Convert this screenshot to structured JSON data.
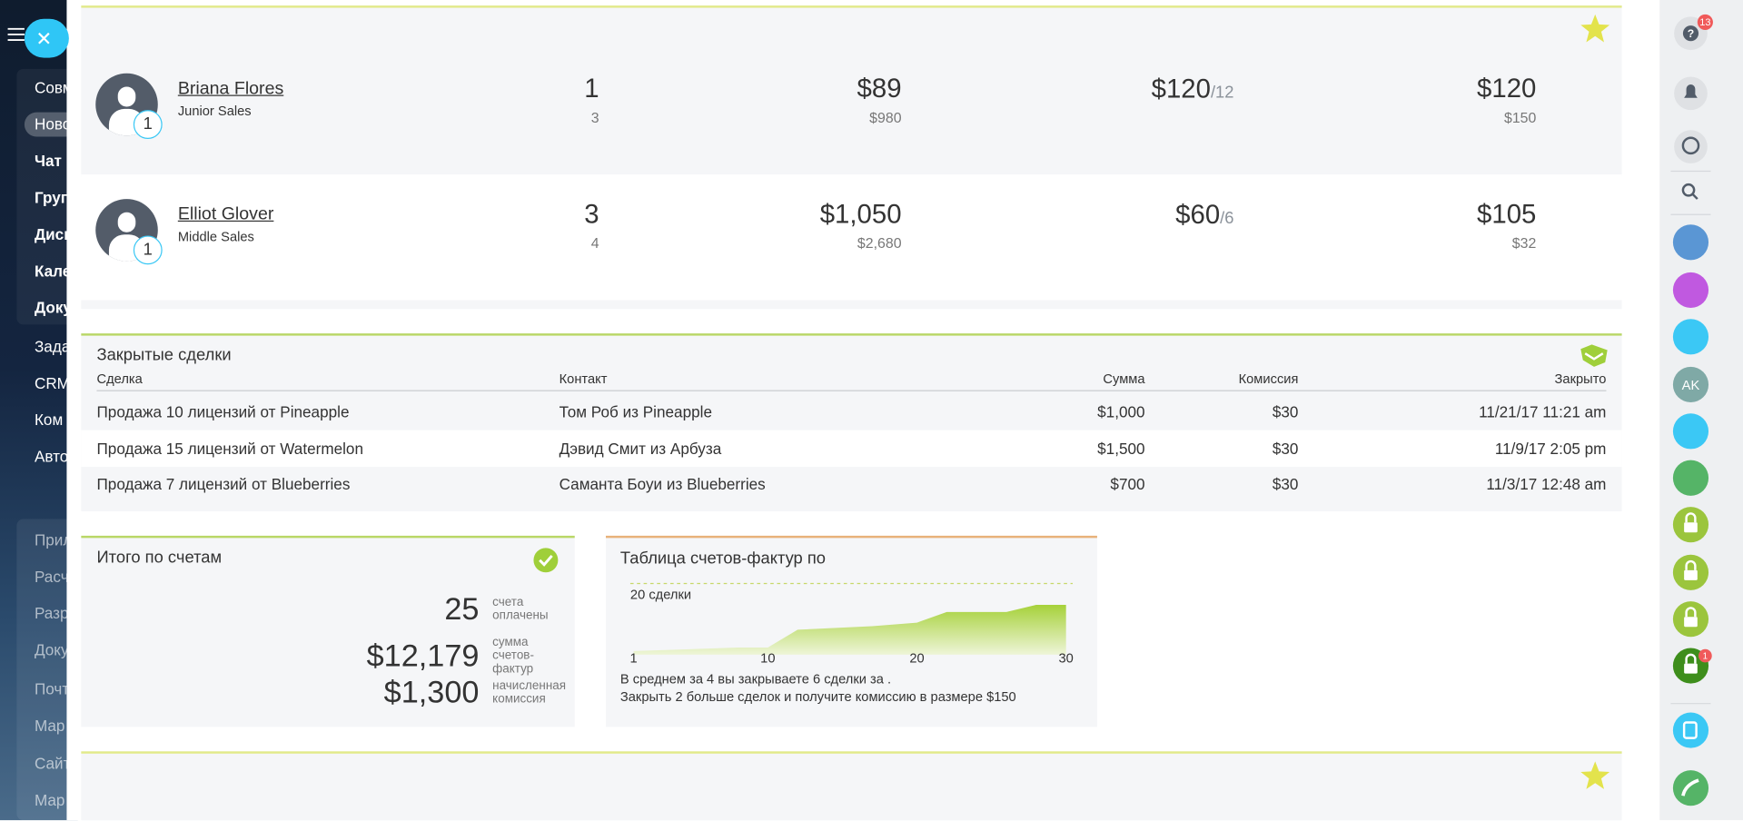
{
  "sidebar": {
    "menu": [
      "Совм",
      "Ново",
      "Чат и",
      "Груп",
      "Диск",
      "Кале",
      "Доку",
      "Зада",
      "CRM",
      "Ком",
      "Авто",
      "Прил",
      "Расч",
      "Разр",
      "Доку",
      "Почт",
      "Мар",
      "Сайт",
      "Мар"
    ]
  },
  "employees": [
    {
      "name": "Briana Flores",
      "role": "Junior Sales",
      "badge": "1",
      "stats": [
        {
          "main": "1",
          "sub": "3"
        },
        {
          "main": "$89",
          "sub": "$980"
        },
        {
          "main": "$120",
          "suffix": "/12"
        },
        {
          "main": "$120",
          "sub": "$150"
        }
      ]
    },
    {
      "name": "Elliot Glover",
      "role": "Middle Sales",
      "badge": "1",
      "stats": [
        {
          "main": "3",
          "sub": "4"
        },
        {
          "main": "$1,050",
          "sub": "$2,680"
        },
        {
          "main": "$60",
          "suffix": "/6"
        },
        {
          "main": "$105",
          "sub": "$32"
        }
      ]
    }
  ],
  "closed_deals": {
    "title": "Закрытые сделки",
    "columns": [
      "Сделка",
      "Контакт",
      "Сумма",
      "Комиссия",
      "Закрыто"
    ],
    "rows": [
      [
        "Продажа 10 лицензий от Pineapple",
        "Том Роб из Pineapple",
        "$1,000",
        "$30",
        "11/21/17 11:21 am"
      ],
      [
        "Продажа 15 лицензий от Watermelon",
        "Дэвид Смит из Арбуза",
        "$1,500",
        "$30",
        "11/9/17 2:05 pm"
      ],
      [
        "Продажа 7 лицензий от Blueberries",
        "Саманта Боуи из Blueberries",
        "$700",
        "$30",
        "11/3/17 12:48 am"
      ]
    ]
  },
  "invoices": {
    "title": "Итого по счетам",
    "items": [
      {
        "value": "25",
        "label": "счета оплачены"
      },
      {
        "value": "$12,179",
        "label": "сумма счетов-фактур"
      },
      {
        "value": "$1,300",
        "label": "начисленная комиссия"
      }
    ]
  },
  "invoice_chart": {
    "title": "Таблица счетов-фактур по",
    "target": 20,
    "target_label": "20 сделки",
    "xlim": [
      1,
      30
    ],
    "ylim": [
      0,
      20
    ],
    "xticks": [
      1,
      10,
      20,
      30
    ],
    "x": [
      1,
      8,
      10,
      12,
      17,
      20,
      22,
      26,
      28,
      30
    ],
    "values": [
      1,
      2,
      2,
      7,
      8,
      9,
      12,
      12,
      14,
      14
    ],
    "notes": [
      "В среднем за 4 вы закрываете 6 сделки за .",
      "Закрыть 2 больше сделок и получите комиссию в размере $150"
    ]
  },
  "right_bar": {
    "help_badge": "13",
    "avatar_initials": "AK",
    "lock_badge": "1"
  }
}
